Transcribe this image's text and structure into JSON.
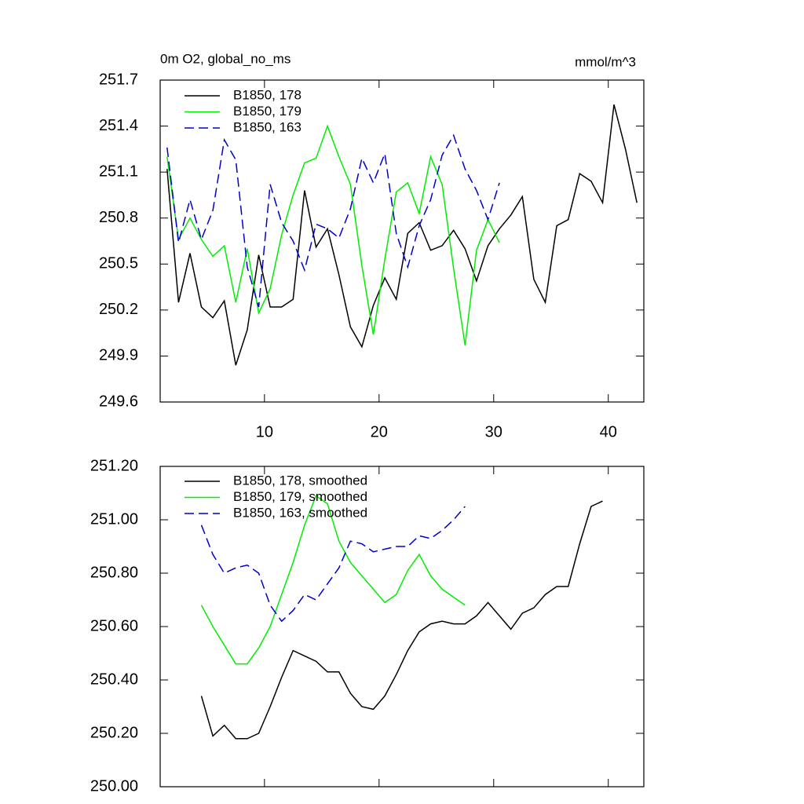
{
  "chart_data": [
    {
      "type": "line",
      "title": "0m O2, global_no_ms",
      "units": "mmol/m^3",
      "xlim": [
        0.9,
        43.1
      ],
      "xticks": [
        10,
        20,
        30,
        40
      ],
      "ylim": [
        249.6,
        251.7
      ],
      "yticks": [
        249.6,
        249.9,
        250.2,
        250.5,
        250.8,
        251.1,
        251.4,
        251.7
      ],
      "series": [
        {
          "name": "B1850, 178",
          "color": "#000000",
          "dashed": false,
          "x": [
            1.5,
            2.5,
            3.5,
            4.5,
            5.5,
            6.5,
            7.5,
            8.5,
            9.5,
            10.5,
            11.5,
            12.5,
            13.5,
            14.5,
            15.5,
            16.5,
            17.5,
            18.5,
            19.5,
            20.5,
            21.5,
            22.5,
            23.5,
            24.5,
            25.5,
            26.5,
            27.5,
            28.5,
            29.5,
            30.5,
            31.5,
            32.5,
            33.5,
            34.5,
            35.5,
            36.5,
            37.5,
            38.5,
            39.5,
            40.5,
            41.5,
            42.5
          ],
          "values": [
            251.12,
            250.25,
            250.57,
            250.22,
            250.15,
            250.26,
            249.84,
            250.07,
            250.56,
            250.22,
            250.22,
            250.27,
            250.98,
            250.61,
            250.73,
            250.43,
            250.09,
            249.96,
            250.23,
            250.41,
            250.27,
            250.7,
            250.77,
            250.59,
            250.62,
            250.72,
            250.6,
            250.39,
            250.62,
            250.73,
            250.82,
            250.94,
            250.4,
            250.25,
            250.75,
            250.79,
            251.09,
            251.04,
            250.9,
            251.54,
            251.25,
            250.9
          ]
        },
        {
          "name": "B1850, 179",
          "color": "#00ee00",
          "dashed": false,
          "x": [
            1.5,
            2.5,
            3.5,
            4.5,
            5.5,
            6.5,
            7.5,
            8.5,
            9.5,
            10.5,
            11.5,
            12.5,
            13.5,
            14.5,
            15.5,
            16.5,
            17.5,
            18.5,
            19.5,
            20.5,
            21.5,
            22.5,
            23.5,
            24.5,
            25.5,
            26.5,
            27.5,
            28.5,
            29.5,
            30.5
          ],
          "values": [
            251.2,
            250.66,
            250.8,
            250.66,
            250.55,
            250.62,
            250.25,
            250.6,
            250.18,
            250.34,
            250.69,
            250.95,
            251.16,
            251.19,
            251.4,
            251.2,
            251.02,
            250.49,
            250.04,
            250.53,
            250.97,
            251.03,
            250.83,
            251.2,
            251.02,
            250.47,
            249.97,
            250.59,
            250.79,
            250.64
          ]
        },
        {
          "name": "B1850, 163",
          "color": "#0000cc",
          "dashed": true,
          "x": [
            1.5,
            2.5,
            3.5,
            4.5,
            5.5,
            6.5,
            7.5,
            8.5,
            9.5,
            10.5,
            11.5,
            12.5,
            13.5,
            14.5,
            15.5,
            16.5,
            17.5,
            18.5,
            19.5,
            20.5,
            21.5,
            22.5,
            23.5,
            24.5,
            25.5,
            26.5,
            27.5,
            28.5,
            29.5,
            30.5
          ],
          "values": [
            251.26,
            250.64,
            250.92,
            250.66,
            250.85,
            251.31,
            251.18,
            250.48,
            250.22,
            251.02,
            250.77,
            250.65,
            250.46,
            250.76,
            250.73,
            250.67,
            250.86,
            251.19,
            251.03,
            251.22,
            250.7,
            250.48,
            250.75,
            250.92,
            251.21,
            251.34,
            251.12,
            250.98,
            250.79,
            251.03
          ]
        }
      ]
    },
    {
      "type": "line",
      "xlim": [
        0.9,
        43.1
      ],
      "xticks": [
        10,
        20,
        30,
        40
      ],
      "ylim": [
        250.0,
        251.2
      ],
      "yticks": [
        {
          "value": 250.0,
          "label": "250.00"
        },
        {
          "value": 250.2,
          "label": "250.20"
        },
        {
          "value": 250.4,
          "label": "250.40"
        },
        {
          "value": 250.6,
          "label": "250.60"
        },
        {
          "value": 250.8,
          "label": "250.80"
        },
        {
          "value": 251.0,
          "label": "251.00"
        },
        {
          "value": 251.2,
          "label": "251.20"
        }
      ],
      "series": [
        {
          "name": "B1850, 178, smoothed",
          "color": "#000000",
          "dashed": false,
          "x": [
            4.5,
            5.5,
            6.5,
            7.5,
            8.5,
            9.5,
            10.5,
            11.5,
            12.5,
            13.5,
            14.5,
            15.5,
            16.5,
            17.5,
            18.5,
            19.5,
            20.5,
            21.5,
            22.5,
            23.5,
            24.5,
            25.5,
            26.5,
            27.5,
            28.5,
            29.5,
            30.5,
            31.5,
            32.5,
            33.5,
            34.5,
            35.5,
            36.5,
            37.5,
            38.5,
            39.5
          ],
          "values": [
            250.34,
            250.19,
            250.23,
            250.18,
            250.18,
            250.2,
            250.3,
            250.41,
            250.51,
            250.49,
            250.47,
            250.43,
            250.43,
            250.35,
            250.3,
            250.29,
            250.34,
            250.42,
            250.51,
            250.58,
            250.61,
            250.62,
            250.61,
            250.61,
            250.64,
            250.69,
            250.64,
            250.59,
            250.65,
            250.67,
            250.72,
            250.75,
            250.75,
            250.91,
            251.05,
            251.07
          ]
        },
        {
          "name": "B1850, 179, smoothed",
          "color": "#00ee00",
          "dashed": false,
          "x": [
            4.5,
            5.5,
            6.5,
            7.5,
            8.5,
            9.5,
            10.5,
            11.5,
            12.5,
            13.5,
            14.5,
            15.5,
            16.5,
            17.5,
            18.5,
            19.5,
            20.5,
            21.5,
            22.5,
            23.5,
            24.5,
            25.5,
            26.5,
            27.5
          ],
          "values": [
            250.68,
            250.6,
            250.53,
            250.46,
            250.46,
            250.52,
            250.6,
            250.72,
            250.84,
            250.98,
            251.09,
            251.06,
            250.92,
            250.84,
            250.79,
            250.74,
            250.69,
            250.72,
            250.81,
            250.87,
            250.79,
            250.74,
            250.71,
            250.68
          ]
        },
        {
          "name": "B1850, 163, smoothed",
          "color": "#0000cc",
          "dashed": true,
          "x": [
            4.5,
            5.5,
            6.5,
            7.5,
            8.5,
            9.5,
            10.5,
            11.5,
            12.5,
            13.5,
            14.5,
            15.5,
            16.5,
            17.5,
            18.5,
            19.5,
            20.5,
            21.5,
            22.5,
            23.5,
            24.5,
            25.5,
            26.5,
            27.5
          ],
          "values": [
            250.98,
            250.87,
            250.8,
            250.82,
            250.83,
            250.8,
            250.68,
            250.62,
            250.66,
            250.72,
            250.7,
            250.76,
            250.82,
            250.92,
            250.91,
            250.88,
            250.89,
            250.9,
            250.9,
            250.94,
            250.93,
            250.96,
            251.0,
            251.05
          ]
        }
      ]
    }
  ]
}
